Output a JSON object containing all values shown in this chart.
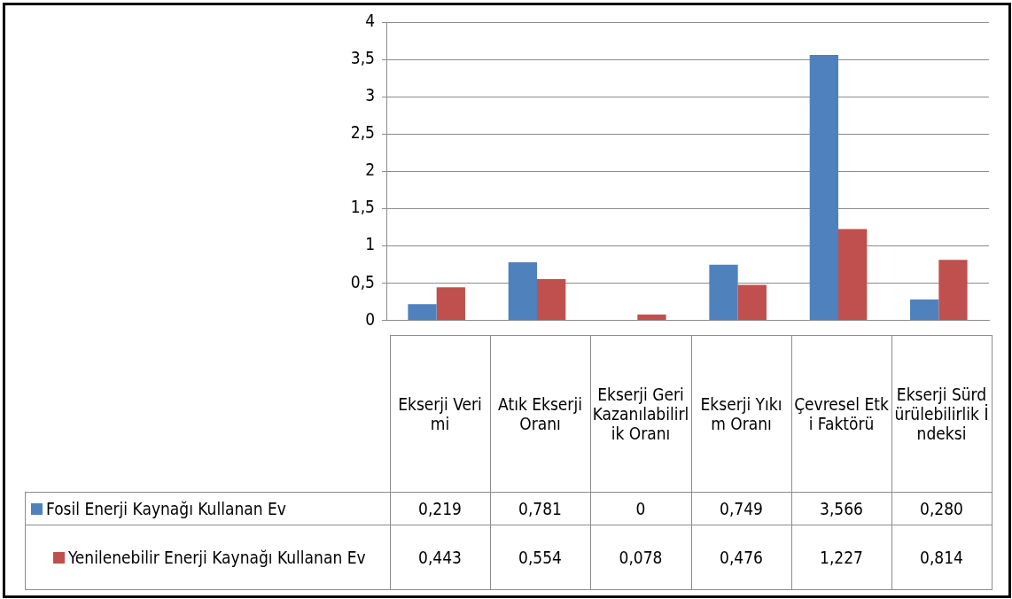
{
  "chart_data": {
    "type": "bar",
    "categories": [
      "Ekserji Verimi",
      "Atık Ekserji Oranı",
      "Ekserji Geri Kazanılabilirlik Oranı",
      "Ekserji Yıkım Oranı",
      "Çevresel Etki Faktörü",
      "Ekserji Sürdürülebilirlik İndeksi"
    ],
    "series": [
      {
        "name": "Fosil Enerji Kaynağı Kullanan Ev",
        "color": "#4f81bd",
        "values": [
          0.219,
          0.781,
          0,
          0.749,
          3.566,
          0.28
        ],
        "value_labels": [
          "0,219",
          "0,781",
          "0",
          "0,749",
          "3,566",
          "0,280"
        ]
      },
      {
        "name": "Yenilenebilir Enerji Kaynağı Kullanan Ev",
        "color": "#c0504d",
        "values": [
          0.443,
          0.554,
          0.078,
          0.476,
          1.227,
          0.814
        ],
        "value_labels": [
          "0,443",
          "0,554",
          "0,078",
          "0,476",
          "1,227",
          "0,814"
        ]
      }
    ],
    "ylim": [
      0,
      4
    ],
    "yticks": [
      0,
      {
        "value": 0.5,
        "label": "0,5"
      },
      1,
      {
        "value": 1.5,
        "label": "1,5"
      },
      2,
      {
        "value": 2.5,
        "label": "2,5"
      },
      3,
      {
        "value": 3.5,
        "label": "3,5"
      },
      4
    ],
    "grid": "y",
    "legend": "bottom"
  }
}
